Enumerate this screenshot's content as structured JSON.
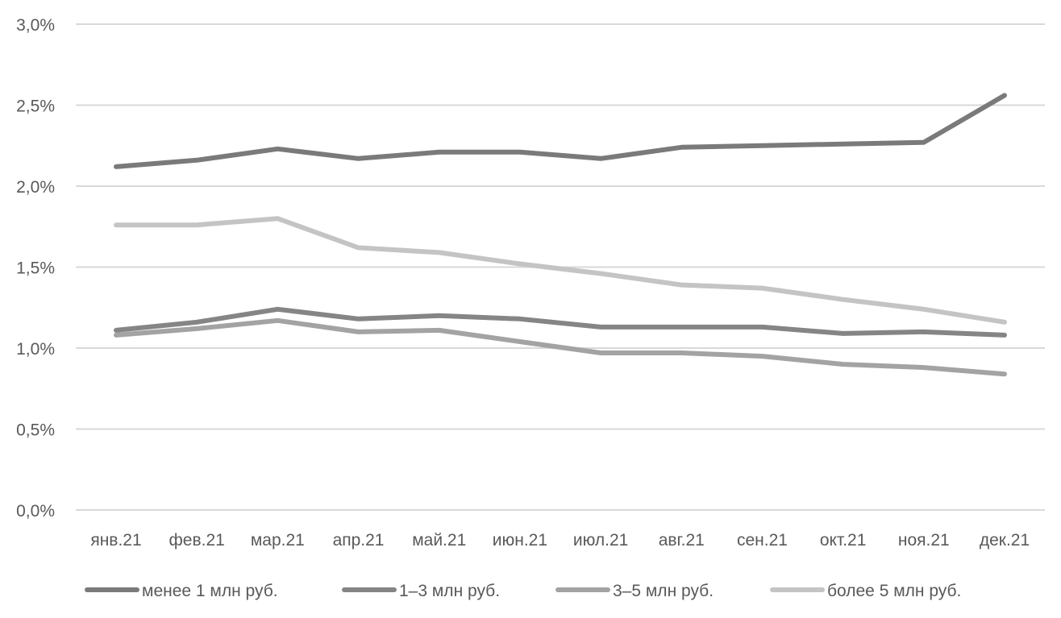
{
  "chart_data": {
    "type": "line",
    "categories": [
      "янв.21",
      "фев.21",
      "мар.21",
      "апр.21",
      "май.21",
      "июн.21",
      "июл.21",
      "авг.21",
      "сен.21",
      "окт.21",
      "ноя.21",
      "дек.21"
    ],
    "series": [
      {
        "name": "менее 1 млн руб.",
        "color": "#7a7a7a",
        "values": [
          2.12,
          2.16,
          2.23,
          2.17,
          2.21,
          2.21,
          2.17,
          2.24,
          2.25,
          2.26,
          2.27,
          2.56
        ]
      },
      {
        "name": "1–3 млн руб.",
        "color": "#858585",
        "values": [
          1.11,
          1.16,
          1.24,
          1.18,
          1.2,
          1.18,
          1.13,
          1.13,
          1.13,
          1.09,
          1.1,
          1.08
        ]
      },
      {
        "name": "3–5 млн руб.",
        "color": "#a3a3a3",
        "values": [
          1.08,
          1.12,
          1.17,
          1.1,
          1.11,
          1.04,
          0.97,
          0.97,
          0.95,
          0.9,
          0.88,
          0.84
        ]
      },
      {
        "name": "более 5 млн руб.",
        "color": "#c4c4c4",
        "values": [
          1.76,
          1.76,
          1.8,
          1.62,
          1.59,
          1.52,
          1.46,
          1.39,
          1.37,
          1.3,
          1.24,
          1.16
        ]
      }
    ],
    "ylim": [
      0,
      3.0
    ],
    "yticks": [
      0,
      0.5,
      1.0,
      1.5,
      2.0,
      2.5,
      3.0
    ],
    "ytick_labels": [
      "0,0%",
      "0,5%",
      "1,0%",
      "1,5%",
      "2,0%",
      "2,5%",
      "3,0%"
    ],
    "grid": "horizontal",
    "legend_position": "bottom",
    "gridline_color": "#d9d9d9"
  }
}
